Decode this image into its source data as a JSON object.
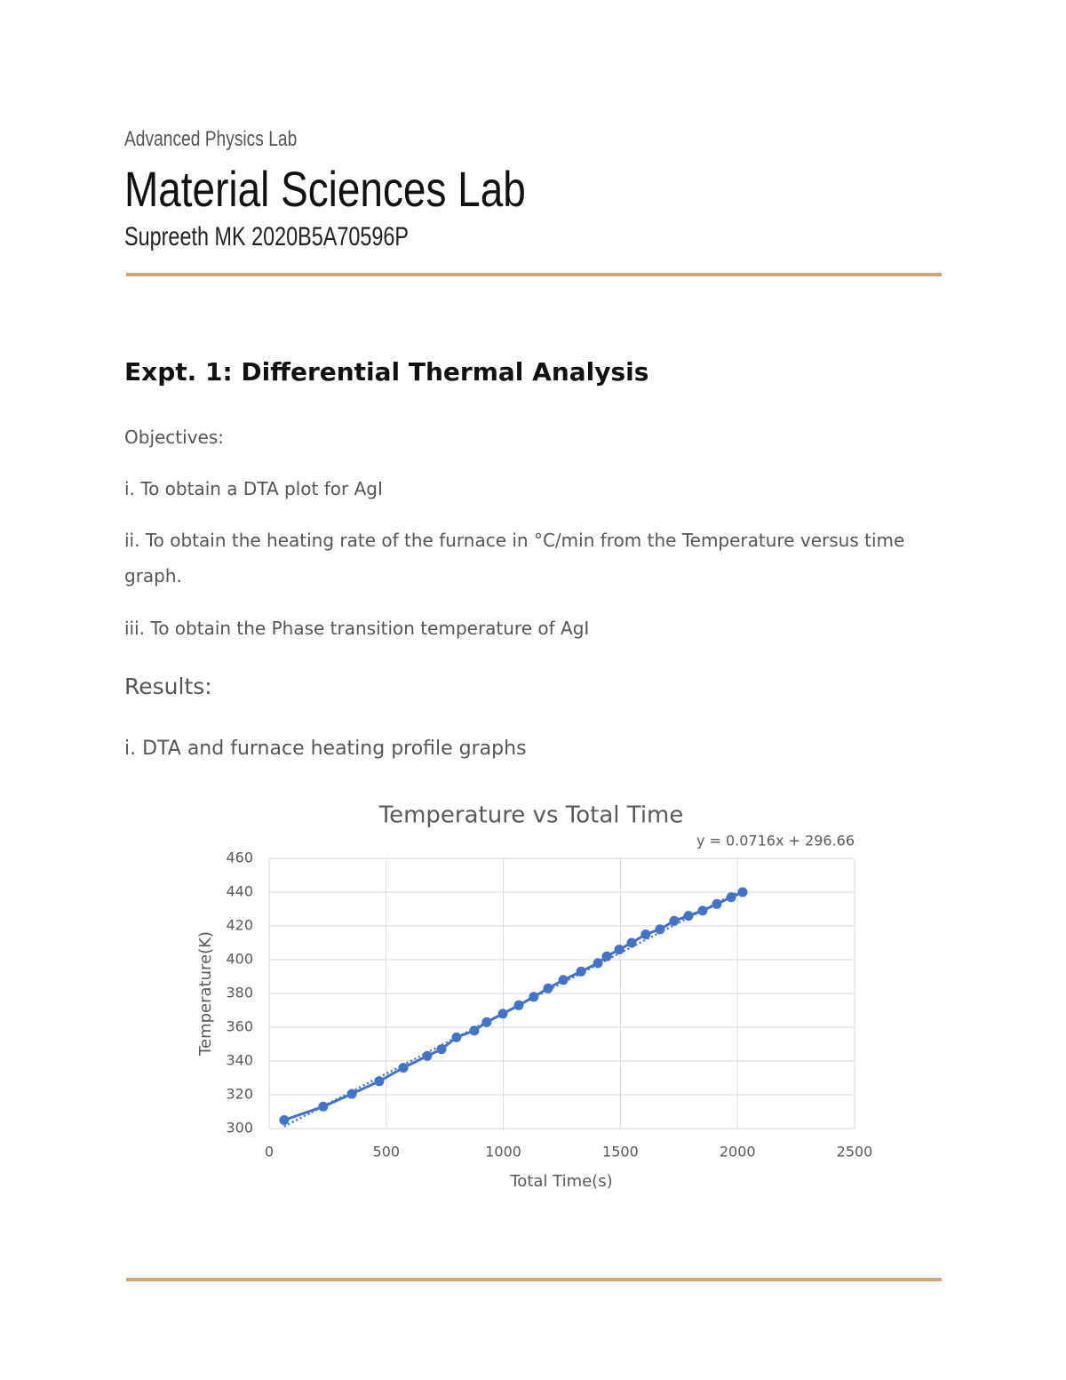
{
  "header": {
    "course": "Advanced Physics Lab",
    "title": "Material Sciences Lab",
    "author": "Supreeth MK 2020B5A70596P"
  },
  "section": {
    "heading": "Expt. 1: Differential Thermal Analysis",
    "objectives_label": "Objectives:",
    "objectives": [
      "i. To obtain a DTA plot for AgI",
      "ii. To obtain the heating rate of the furnace in °C/min from the Temperature versus time graph.",
      "iii. To obtain the Phase transition temperature of AgI"
    ],
    "results_label": "Results:",
    "results_item": "i. DTA and furnace heating profile graphs"
  },
  "chart_data": {
    "type": "scatter",
    "title": "Temperature vs Total Time",
    "x_label": "Total Time(s)",
    "y_label": "Temperature(K)",
    "x": [
      64,
      231,
      353,
      470,
      573,
      675,
      736,
      800,
      876,
      929,
      998,
      1066,
      1130,
      1191,
      1256,
      1332,
      1404,
      1442,
      1495,
      1548,
      1608,
      1669,
      1730,
      1791,
      1851,
      1912,
      1973,
      2022
    ],
    "series": [
      {
        "name": "Temperature",
        "color": "#4472c4",
        "values": [
          305,
          313,
          320.5,
          328,
          336,
          343,
          347,
          354,
          358,
          363,
          368,
          373,
          378,
          383,
          388,
          393,
          398,
          402,
          406,
          410,
          415,
          418,
          423,
          426,
          429,
          433,
          437,
          440
        ]
      }
    ],
    "trendline": {
      "slope": 0.0716,
      "intercept": 296.66,
      "label": "y = 0.0716x + 296.66"
    },
    "xlim": [
      0,
      2500
    ],
    "xticks": [
      0,
      500,
      1000,
      1500,
      2000,
      2500
    ],
    "ylim": [
      300,
      460
    ],
    "yticks": [
      300,
      320,
      340,
      360,
      380,
      400,
      420,
      440,
      460
    ],
    "grid": true
  }
}
